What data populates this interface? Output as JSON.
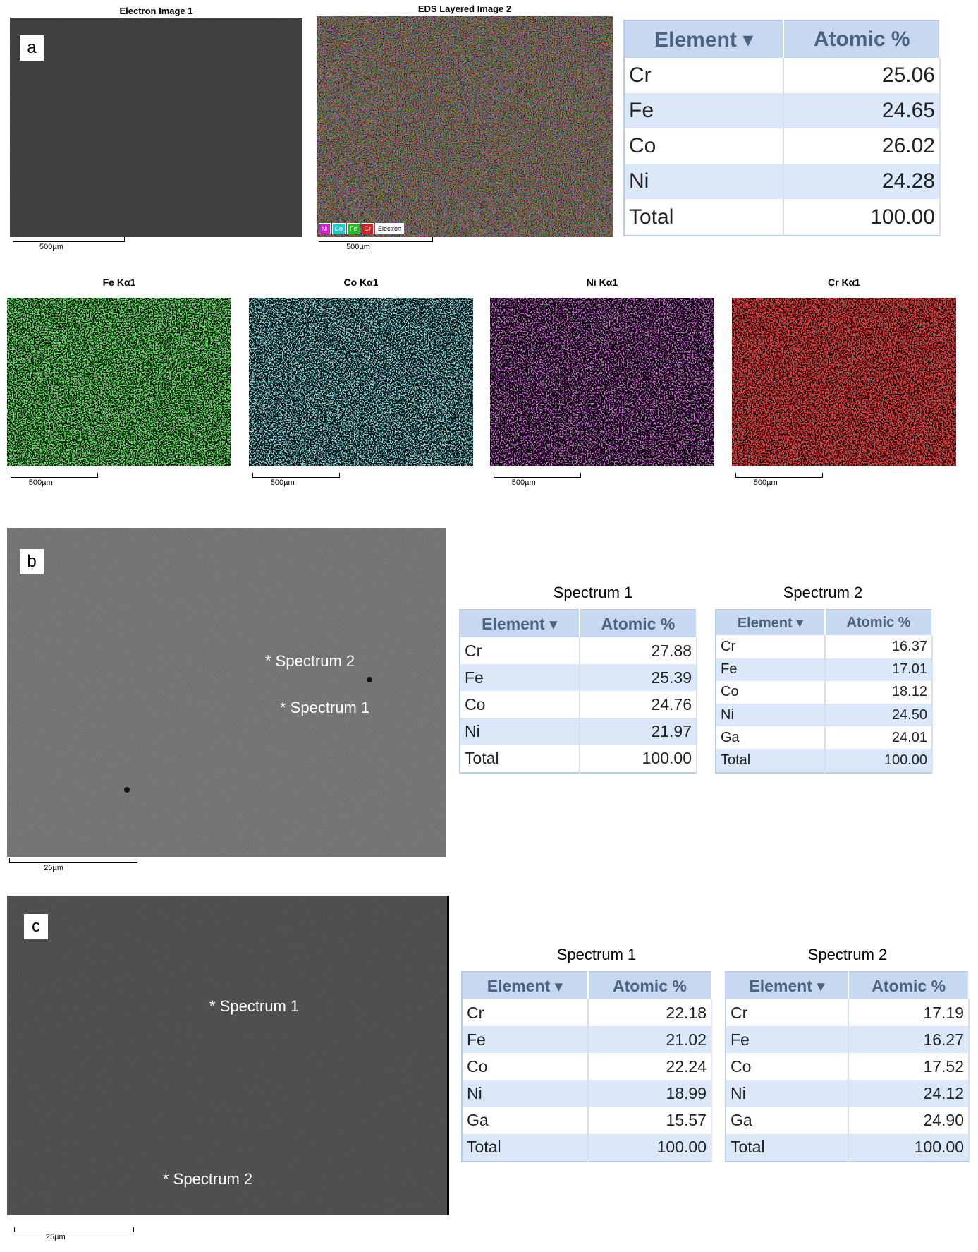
{
  "panel_a": {
    "label": "a",
    "electron_image": {
      "title": "Electron Image 1",
      "scale": "500µm"
    },
    "layered_image": {
      "title": "EDS Layered Image 2",
      "scale": "500µm",
      "legend": [
        "Ni",
        "Co",
        "Fe",
        "Cr",
        "Electron"
      ]
    },
    "table": {
      "header": [
        "Element ▾",
        "Atomic %"
      ],
      "rows": [
        [
          "Cr",
          "25.06"
        ],
        [
          "Fe",
          "24.65"
        ],
        [
          "Co",
          "26.02"
        ],
        [
          "Ni",
          "24.28"
        ],
        [
          "Total",
          "100.00"
        ]
      ]
    },
    "maps": [
      {
        "title": "Fe Kα1",
        "scale": "500µm"
      },
      {
        "title": "Co Kα1",
        "scale": "500µm"
      },
      {
        "title": "Ni Kα1",
        "scale": "500µm"
      },
      {
        "title": "Cr Kα1",
        "scale": "500µm"
      }
    ]
  },
  "panel_b": {
    "label": "b",
    "scale": "25µm",
    "markers": [
      "* Spectrum 2",
      "* Spectrum 1"
    ],
    "tables": [
      {
        "title": "Spectrum 1",
        "header": [
          "Element ▾",
          "Atomic %"
        ],
        "rows": [
          [
            "Cr",
            "27.88"
          ],
          [
            "Fe",
            "25.39"
          ],
          [
            "Co",
            "24.76"
          ],
          [
            "Ni",
            "21.97"
          ],
          [
            "Total",
            "100.00"
          ]
        ]
      },
      {
        "title": "Spectrum 2",
        "header": [
          "Element ▾",
          "Atomic %"
        ],
        "rows": [
          [
            "Cr",
            "16.37"
          ],
          [
            "Fe",
            "17.01"
          ],
          [
            "Co",
            "18.12"
          ],
          [
            "Ni",
            "24.50"
          ],
          [
            "Ga",
            "24.01"
          ],
          [
            "Total",
            "100.00"
          ]
        ]
      }
    ]
  },
  "panel_c": {
    "label": "c",
    "scale": "25µm",
    "markers": [
      "* Spectrum 1",
      "* Spectrum 2"
    ],
    "tables": [
      {
        "title": "Spectrum 1",
        "header": [
          "Element ▾",
          "Atomic %"
        ],
        "rows": [
          [
            "Cr",
            "22.18"
          ],
          [
            "Fe",
            "21.02"
          ],
          [
            "Co",
            "22.24"
          ],
          [
            "Ni",
            "18.99"
          ],
          [
            "Ga",
            "15.57"
          ],
          [
            "Total",
            "100.00"
          ]
        ]
      },
      {
        "title": "Spectrum 2",
        "header": [
          "Element ▾",
          "Atomic %"
        ],
        "rows": [
          [
            "Cr",
            "17.19"
          ],
          [
            "Fe",
            "16.27"
          ],
          [
            "Co",
            "17.52"
          ],
          [
            "Ni",
            "24.12"
          ],
          [
            "Ga",
            "24.90"
          ],
          [
            "Total",
            "100.00"
          ]
        ]
      }
    ]
  }
}
